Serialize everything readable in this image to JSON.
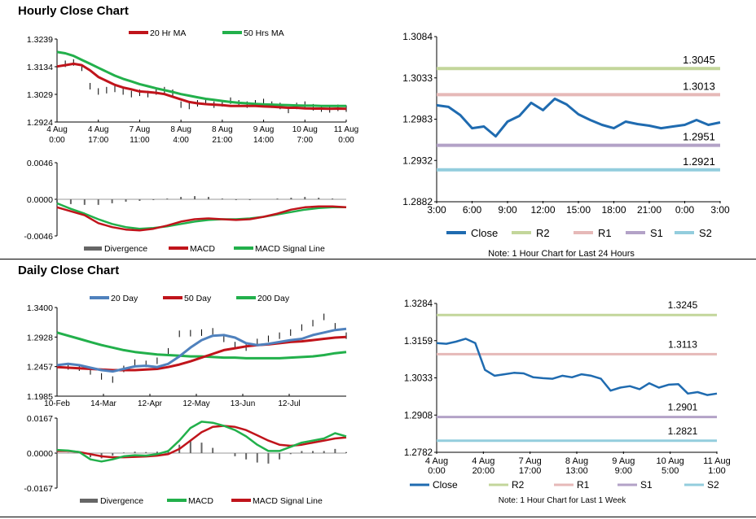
{
  "sections": {
    "hourly_title": "Hourly Close Chart",
    "daily_title": "Daily Close Chart"
  },
  "colors": {
    "close": "#1f6bb0",
    "ma_red": "#c0141b",
    "ma_green": "#22b04b",
    "twenty_day": "#4f81bd",
    "r2": "#c3d69b",
    "r1": "#e6b9b8",
    "s1": "#b3a2c7",
    "s2": "#93cddd",
    "divergence": "#666666"
  },
  "chart_data": [
    {
      "id": "hourly_price",
      "type": "line",
      "yticks": [
        "1.3239",
        "1.3134",
        "1.3029",
        "1.2924"
      ],
      "ylim": [
        1.2924,
        1.3239
      ],
      "xticks": [
        [
          "4 Aug",
          "0:00"
        ],
        [
          "4 Aug",
          "17:00"
        ],
        [
          "7 Aug",
          "11:00"
        ],
        [
          "8 Aug",
          "4:00"
        ],
        [
          "8 Aug",
          "21:00"
        ],
        [
          "9 Aug",
          "14:00"
        ],
        [
          "10 Aug",
          "7:00"
        ],
        [
          "11 Aug",
          "0:00"
        ]
      ],
      "legend": [
        "20 Hr MA",
        "50 Hrs MA"
      ],
      "series": [
        {
          "name": "20 Hr MA",
          "values": [
            1.3135,
            1.314,
            1.3145,
            1.314,
            1.312,
            1.3095,
            1.308,
            1.3065,
            1.3055,
            1.3048,
            1.304,
            1.3038,
            1.3035,
            1.303,
            1.302,
            1.301,
            1.3,
            1.2995,
            1.2992,
            1.299,
            1.2988,
            1.2985,
            1.2985,
            1.2985,
            1.2985,
            1.2983,
            1.2982,
            1.298,
            1.2978,
            1.2978,
            1.2976,
            1.2975,
            1.2975,
            1.2974,
            1.2975,
            1.2974
          ]
        },
        {
          "name": "50 Hrs MA",
          "values": [
            1.319,
            1.3185,
            1.3175,
            1.316,
            1.3145,
            1.313,
            1.3115,
            1.31,
            1.3088,
            1.3078,
            1.3068,
            1.306,
            1.3052,
            1.3045,
            1.3038,
            1.303,
            1.3024,
            1.3018,
            1.3012,
            1.3008,
            1.3004,
            1.3,
            1.2997,
            1.2995,
            1.2993,
            1.2991,
            1.299,
            1.2989,
            1.2988,
            1.2987,
            1.2986,
            1.2986,
            1.2985,
            1.2985,
            1.2985,
            1.2985
          ]
        },
        {
          "name": "price",
          "values": [
            1.312,
            1.3145,
            1.315,
            1.313,
            1.306,
            1.304,
            1.3045,
            1.305,
            1.304,
            1.303,
            1.3035,
            1.303,
            1.304,
            1.3045,
            1.3035,
            1.299,
            1.2985,
            1.2995,
            1.3,
            1.299,
            1.2995,
            1.3005,
            1.2995,
            1.299,
            1.2995,
            1.3,
            1.299,
            1.2985,
            1.297,
            1.2985,
            1.299,
            1.298,
            1.2975,
            1.2972,
            1.2978,
            1.2975
          ]
        }
      ]
    },
    {
      "id": "hourly_macd",
      "type": "line",
      "yticks": [
        "0.0046",
        "0.0000",
        "-0.0046"
      ],
      "ylim": [
        -0.0046,
        0.0046
      ],
      "legend": [
        "Divergence",
        "MACD",
        "MACD Signal Line"
      ],
      "series": [
        {
          "name": "MACD",
          "values": [
            -0.001,
            -0.0015,
            -0.002,
            -0.003,
            -0.0035,
            -0.0038,
            -0.0039,
            -0.0037,
            -0.0033,
            -0.0028,
            -0.0025,
            -0.0024,
            -0.0025,
            -0.0026,
            -0.0025,
            -0.0022,
            -0.0018,
            -0.0013,
            -0.001,
            -0.0009,
            -0.0009,
            -0.001
          ]
        },
        {
          "name": "MACD Signal Line",
          "values": [
            -0.0005,
            -0.0012,
            -0.0018,
            -0.0025,
            -0.0031,
            -0.0035,
            -0.0037,
            -0.0036,
            -0.0034,
            -0.0031,
            -0.0028,
            -0.0026,
            -0.0025,
            -0.0025,
            -0.0024,
            -0.0022,
            -0.0019,
            -0.0016,
            -0.0013,
            -0.0011,
            -0.001,
            -0.001
          ]
        },
        {
          "name": "Divergence",
          "values": [
            -0.0004,
            -0.0006,
            -0.0007,
            -0.0007,
            -0.0005,
            -0.0003,
            -0.0002,
            -0.0001,
            0.0001,
            0.0003,
            0.0004,
            0.0003,
            0.0001,
            -0.0001,
            -0.0001,
            0.0,
            0.0001,
            0.0002,
            0.0003,
            0.0002,
            0.0001,
            0.0
          ]
        }
      ]
    },
    {
      "id": "hourly_24h",
      "type": "line",
      "yticks": [
        "1.3084",
        "1.3033",
        "1.2983",
        "1.2932",
        "1.2882"
      ],
      "ylim": [
        1.2882,
        1.3084
      ],
      "xticks": [
        "3:00",
        "6:00",
        "9:00",
        "12:00",
        "15:00",
        "18:00",
        "21:00",
        "0:00",
        "3:00"
      ],
      "levels": [
        {
          "name": "R2",
          "value": 1.3045,
          "label": "1.3045"
        },
        {
          "name": "R1",
          "value": 1.3013,
          "label": "1.3013"
        },
        {
          "name": "S1",
          "value": 1.2951,
          "label": "1.2951"
        },
        {
          "name": "S2",
          "value": 1.2921,
          "label": "1.2921"
        }
      ],
      "close": [
        1.3,
        1.2998,
        1.2988,
        1.2972,
        1.2974,
        1.2962,
        1.298,
        1.2987,
        1.3003,
        1.2994,
        1.3008,
        1.3001,
        1.2989,
        1.2982,
        1.2976,
        1.2972,
        1.298,
        1.2977,
        1.2975,
        1.2972,
        1.2974,
        1.2976,
        1.2982,
        1.2976,
        1.2979
      ],
      "legend": [
        "Close",
        "R2",
        "R1",
        "S1",
        "S2"
      ],
      "note": "Note: 1 Hour Chart for Last 24 Hours"
    },
    {
      "id": "daily_price",
      "type": "line",
      "yticks": [
        "1.3400",
        "1.2928",
        "1.2457",
        "1.1985"
      ],
      "ylim": [
        1.1985,
        1.34
      ],
      "xticks": [
        "10-Feb",
        "14-Mar",
        "12-Apr",
        "12-May",
        "13-Jun",
        "12-Jul"
      ],
      "legend": [
        "20 Day",
        "50 Day",
        "200 Day"
      ],
      "series": [
        {
          "name": "20 Day",
          "values": [
            1.248,
            1.25,
            1.248,
            1.244,
            1.24,
            1.238,
            1.242,
            1.246,
            1.247,
            1.245,
            1.25,
            1.262,
            1.276,
            1.288,
            1.295,
            1.296,
            1.292,
            1.283,
            1.28,
            1.282,
            1.285,
            1.288,
            1.29,
            1.296,
            1.3,
            1.304,
            1.306
          ]
        },
        {
          "name": "50 Day",
          "values": [
            1.245,
            1.244,
            1.243,
            1.242,
            1.241,
            1.24,
            1.24,
            1.24,
            1.241,
            1.242,
            1.245,
            1.249,
            1.254,
            1.26,
            1.266,
            1.272,
            1.275,
            1.278,
            1.28,
            1.281,
            1.283,
            1.285,
            1.286,
            1.288,
            1.29,
            1.292,
            1.293
          ]
        },
        {
          "name": "200 Day",
          "values": [
            1.3,
            1.295,
            1.29,
            1.285,
            1.28,
            1.276,
            1.272,
            1.269,
            1.267,
            1.265,
            1.264,
            1.263,
            1.262,
            1.262,
            1.261,
            1.26,
            1.26,
            1.259,
            1.259,
            1.259,
            1.259,
            1.26,
            1.261,
            1.262,
            1.264,
            1.267,
            1.269
          ]
        },
        {
          "name": "price",
          "values": [
            1.247,
            1.246,
            1.244,
            1.238,
            1.23,
            1.225,
            1.242,
            1.252,
            1.25,
            1.255,
            1.27,
            1.298,
            1.299,
            1.3,
            1.302,
            1.29,
            1.28,
            1.276,
            1.285,
            1.29,
            1.295,
            1.3,
            1.308,
            1.315,
            1.325,
            1.31,
            1.295
          ]
        }
      ]
    },
    {
      "id": "daily_macd",
      "type": "line",
      "yticks": [
        "0.0167",
        "0.0000",
        "-0.0167"
      ],
      "ylim": [
        -0.0167,
        0.0167
      ],
      "legend": [
        "Divergence",
        "MACD",
        "MACD Signal Line"
      ],
      "series": [
        {
          "name": "MACD",
          "values": [
            0.0015,
            0.0012,
            0.0005,
            -0.003,
            -0.004,
            -0.003,
            -0.0015,
            -0.001,
            -0.0012,
            -0.0005,
            0.001,
            0.006,
            0.012,
            0.015,
            0.0145,
            0.013,
            0.011,
            0.008,
            0.004,
            0.001,
            0.001,
            0.003,
            0.005,
            0.006,
            0.007,
            0.0095,
            0.008
          ]
        },
        {
          "name": "MACD Signal Line",
          "values": [
            0.001,
            0.001,
            0.0005,
            -0.0005,
            -0.0015,
            -0.002,
            -0.002,
            -0.0018,
            -0.0016,
            -0.0012,
            -0.0005,
            0.002,
            0.006,
            0.01,
            0.0125,
            0.013,
            0.0125,
            0.011,
            0.0085,
            0.006,
            0.004,
            0.0035,
            0.004,
            0.005,
            0.006,
            0.007,
            0.0075
          ]
        },
        {
          "name": "Divergence",
          "values": [
            0.0003,
            0.0002,
            0.0,
            -0.002,
            -0.0025,
            -0.0012,
            0.0003,
            0.0007,
            0.0005,
            0.0007,
            0.0015,
            0.004,
            0.006,
            0.005,
            0.0025,
            0.0,
            -0.0015,
            -0.003,
            -0.0045,
            -0.005,
            -0.003,
            -0.0005,
            0.001,
            0.001,
            0.001,
            0.002,
            0.0005
          ]
        }
      ]
    },
    {
      "id": "daily_week",
      "type": "line",
      "yticks": [
        "1.3284",
        "1.3159",
        "1.3033",
        "1.2908",
        "1.2782"
      ],
      "ylim": [
        1.2782,
        1.3284
      ],
      "xticks": [
        [
          "4 Aug",
          "0:00"
        ],
        [
          "4 Aug",
          "20:00"
        ],
        [
          "7 Aug",
          "17:00"
        ],
        [
          "8 Aug",
          "13:00"
        ],
        [
          "9 Aug",
          "9:00"
        ],
        [
          "10 Aug",
          "5:00"
        ],
        [
          "11 Aug",
          "1:00"
        ]
      ],
      "levels": [
        {
          "name": "R2",
          "value": 1.3245,
          "label": "1.3245"
        },
        {
          "name": "R1",
          "value": 1.3113,
          "label": "1.3113"
        },
        {
          "name": "S1",
          "value": 1.2901,
          "label": "1.2901"
        },
        {
          "name": "S2",
          "value": 1.2821,
          "label": "1.2821"
        }
      ],
      "close": [
        1.315,
        1.3148,
        1.3155,
        1.3165,
        1.315,
        1.306,
        1.304,
        1.3045,
        1.305,
        1.3048,
        1.3035,
        1.3032,
        1.303,
        1.304,
        1.3035,
        1.3045,
        1.304,
        1.303,
        1.299,
        1.3,
        1.3005,
        1.2995,
        1.3015,
        1.3,
        1.301,
        1.3012,
        1.298,
        1.2985,
        1.2975,
        1.298
      ],
      "legend": [
        "Close",
        "R2",
        "R1",
        "S1",
        "S2"
      ],
      "note": "Note: 1 Hour Chart for Last 1 Week"
    }
  ]
}
